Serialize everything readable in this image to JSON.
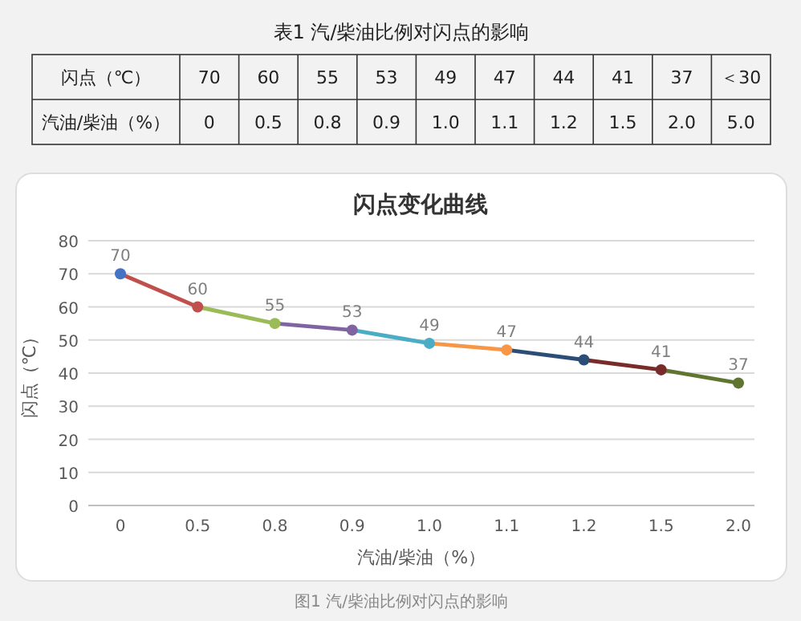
{
  "chart_data": [
    {
      "type": "other",
      "title": "表1 汽/柴油比例对闪点的影响",
      "y_categories": [
        "闪点（℃）",
        "汽油/柴油（%）"
      ],
      "cell_labels": [
        [
          "70",
          "60",
          "55",
          "53",
          "49",
          "47",
          "44",
          "41",
          "37",
          "＜30"
        ],
        [
          "0",
          "0.5",
          "0.8",
          "0.9",
          "1.0",
          "1.1",
          "1.2",
          "1.5",
          "2.0",
          "5.0"
        ]
      ]
    },
    {
      "type": "line",
      "title": "闪点变化曲线",
      "xlabel": "汽油/柴油（%）",
      "ylabel": "闪点（℃）",
      "categories": [
        "0",
        "0.5",
        "0.8",
        "0.9",
        "1.0",
        "1.1",
        "1.2",
        "1.5",
        "2.0"
      ],
      "series": [
        {
          "values": [
            70,
            60,
            55,
            53,
            49,
            47,
            44,
            41,
            37
          ],
          "colors": [
            "#4472c4",
            "#c0504d",
            "#9bbb59",
            "#8064a2",
            "#4bacc6",
            "#f79646",
            "#2c4d75",
            "#772c2a",
            "#5f7530"
          ]
        }
      ],
      "ylim": [
        0,
        80
      ],
      "yticks": [
        0,
        10,
        20,
        30,
        40,
        50,
        60,
        70,
        80
      ],
      "grid": "y",
      "marker": "circle",
      "data_labels": true,
      "annotations": [
        "图1 汽/柴油比例对闪点的影响"
      ]
    }
  ]
}
